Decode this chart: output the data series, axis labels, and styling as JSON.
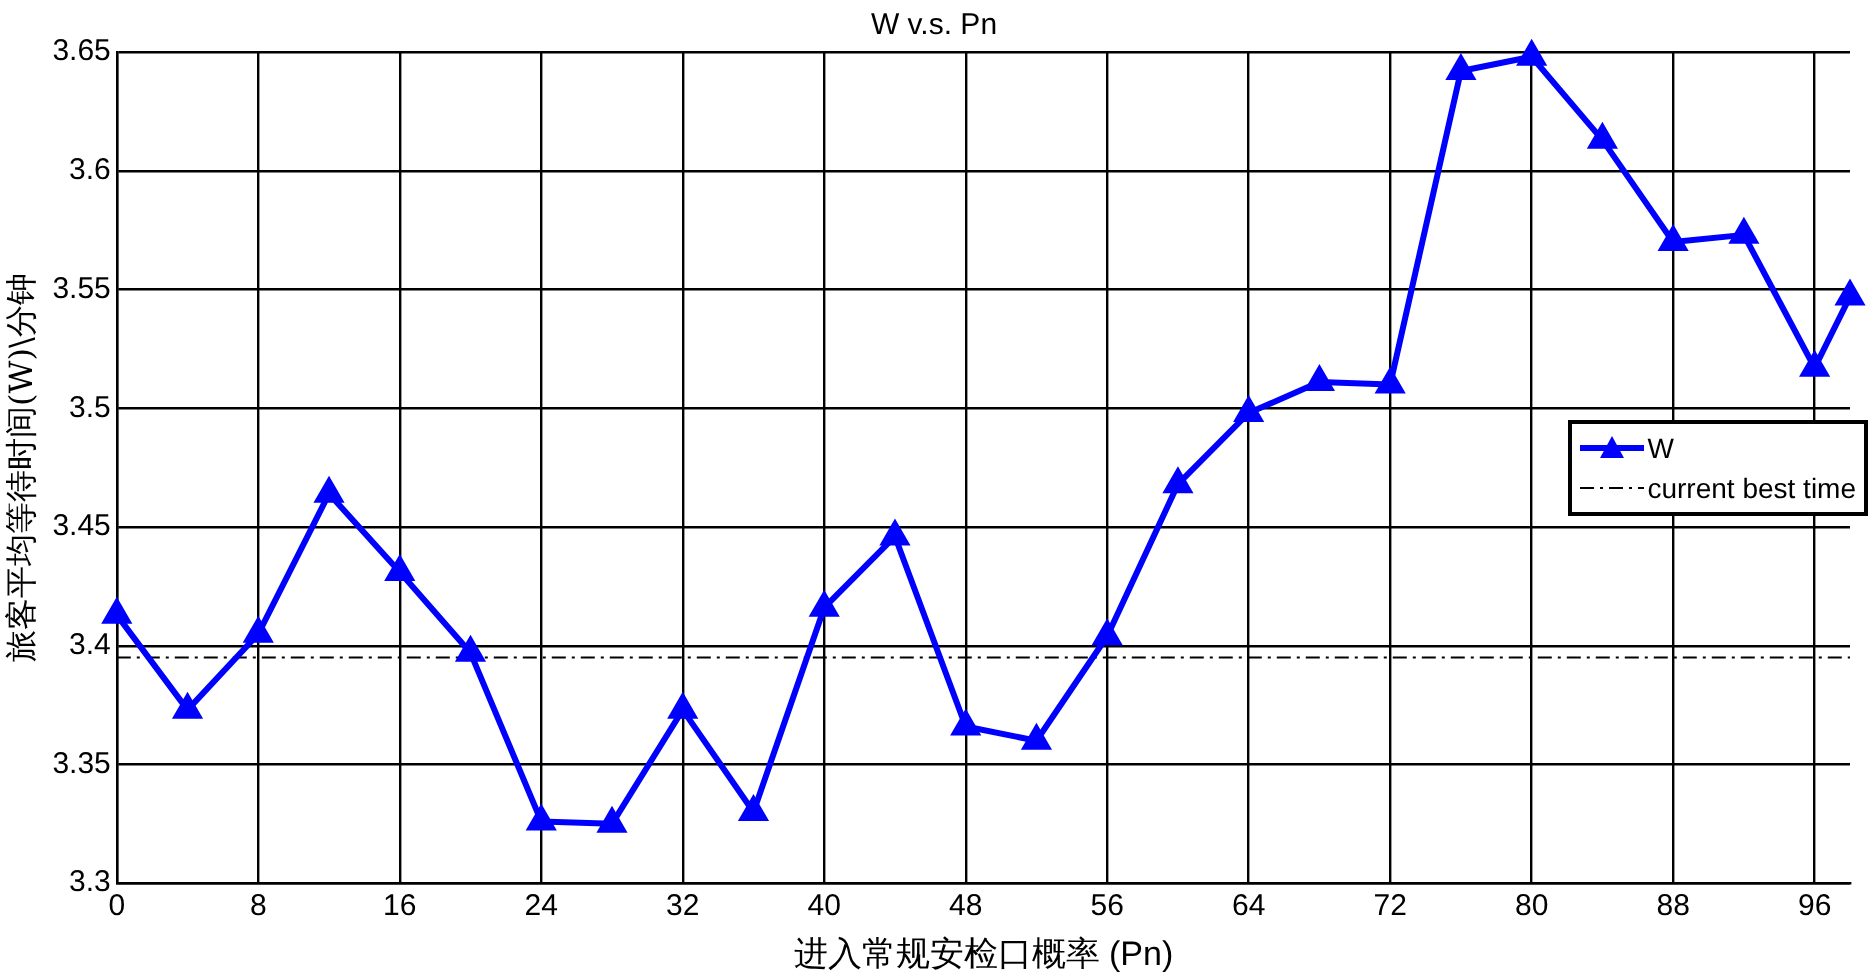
{
  "chart_data": {
    "type": "line",
    "title": "W v.s. Pn",
    "xlabel": "进入常规安检口概率 (Pn)",
    "ylabel": "旅客平均等待时间(W)\\分钟",
    "x": [
      0,
      4,
      8,
      12,
      16,
      20,
      24,
      28,
      32,
      36,
      40,
      44,
      48,
      52,
      56,
      60,
      64,
      68,
      72,
      76,
      80,
      84,
      88,
      92,
      96,
      98
    ],
    "series": [
      {
        "name": "W",
        "color": "#0000ff",
        "marker": "triangle",
        "line_style": "solid",
        "values": [
          3.413,
          3.373,
          3.405,
          3.464,
          3.431,
          3.397,
          3.326,
          3.325,
          3.373,
          3.33,
          3.416,
          3.446,
          3.366,
          3.36,
          3.404,
          3.468,
          3.498,
          3.511,
          3.51,
          3.642,
          3.648,
          3.613,
          3.57,
          3.573,
          3.517,
          3.547
        ]
      },
      {
        "name": "current best time",
        "color": "#000000",
        "marker": "none",
        "line_style": "dashed",
        "x": [
          0,
          98
        ],
        "values": [
          3.395,
          3.395
        ]
      }
    ],
    "xlim": [
      0,
      98
    ],
    "xticks": [
      0,
      8,
      16,
      24,
      32,
      40,
      48,
      56,
      64,
      72,
      80,
      88,
      96
    ],
    "ylim": [
      3.3,
      3.65
    ],
    "yticks": [
      3.3,
      3.35,
      3.4,
      3.45,
      3.5,
      3.55,
      3.6,
      3.65
    ],
    "grid": true,
    "legend": "right"
  }
}
